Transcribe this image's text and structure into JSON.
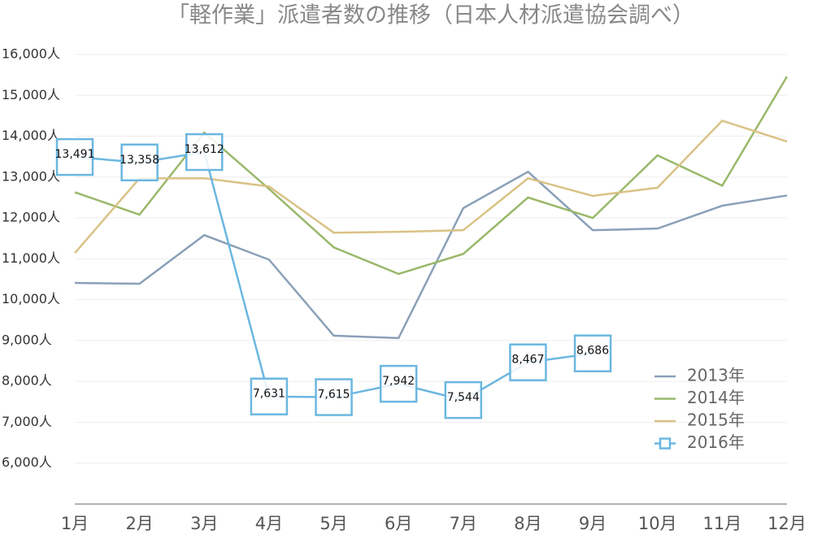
{
  "chart_data": {
    "type": "line",
    "title": "「軽作業」派遣者数の推移（日本人材派遣協会調べ）",
    "categories": [
      "1月",
      "2月",
      "3月",
      "4月",
      "5月",
      "6月",
      "7月",
      "8月",
      "9月",
      "10月",
      "11月",
      "12月"
    ],
    "series": [
      {
        "name": "2013年",
        "color": "#8aa0b8",
        "values": [
          10410,
          10390,
          11580,
          10980,
          9120,
          9060,
          12240,
          13130,
          11700,
          11740,
          12300,
          12550
        ]
      },
      {
        "name": "2014年",
        "color": "#9ab86a",
        "values": [
          12630,
          12080,
          14090,
          12710,
          11280,
          10630,
          11120,
          12500,
          12000,
          13530,
          12790,
          15460
        ]
      },
      {
        "name": "2015年",
        "color": "#d9c285",
        "values": [
          11140,
          12970,
          12970,
          12770,
          11640,
          11660,
          11700,
          12970,
          12540,
          12740,
          14380,
          13870
        ]
      },
      {
        "name": "2016年",
        "color": "#6bb7e0",
        "markers": "square",
        "values": [
          13491,
          13358,
          13612,
          7631,
          7615,
          7942,
          7544,
          8467,
          8686,
          null,
          null,
          null
        ],
        "value_labels": [
          "13,491",
          "13,358",
          "13,612",
          "7,631",
          "7,615",
          "7,942",
          "7,544",
          "8,467",
          "8,686",
          null,
          null,
          null
        ]
      }
    ],
    "ylim": [
      5000,
      16000
    ],
    "yticks": [
      {
        "value": 6000,
        "label": "6,000人"
      },
      {
        "value": 7000,
        "label": "7,000人"
      },
      {
        "value": 8000,
        "label": "8,000人"
      },
      {
        "value": 9000,
        "label": "9,000人"
      },
      {
        "value": 10000,
        "label": "10,000人"
      },
      {
        "value": 11000,
        "label": "11,000人"
      },
      {
        "value": 12000,
        "label": "12,000人"
      },
      {
        "value": 13000,
        "label": "13,000人"
      },
      {
        "value": 14000,
        "label": "14,000人"
      },
      {
        "value": 15000,
        "label": "15,000人"
      },
      {
        "value": 16000,
        "label": "16,000人"
      }
    ],
    "grid": true,
    "legend": "lower-right"
  }
}
